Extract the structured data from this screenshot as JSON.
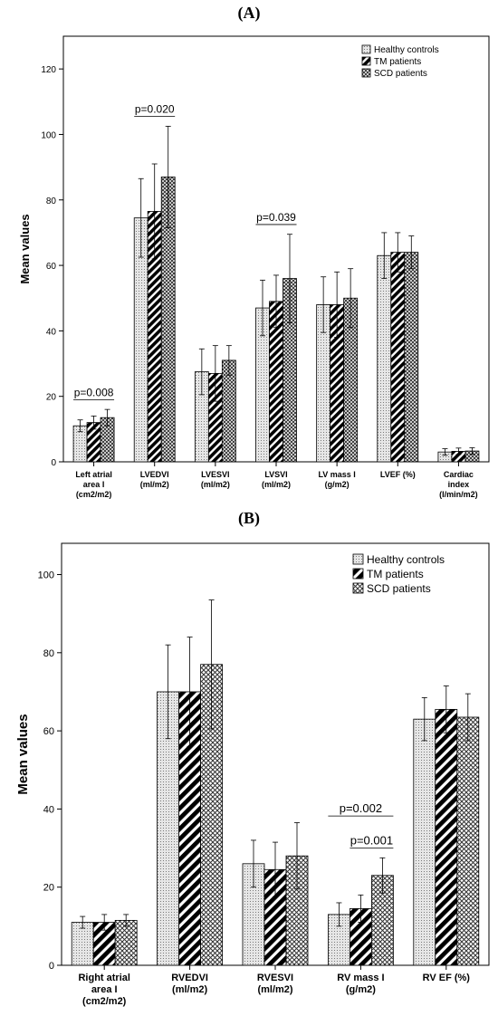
{
  "panels": {
    "a_label": "(A)",
    "b_label": "(B)"
  },
  "fills": {
    "healthy": "#d9d9d9",
    "tm": "#000000",
    "scd": "#7a7a7a"
  },
  "chart_data": [
    {
      "type": "bar",
      "panel": "(A)",
      "ylabel": "Mean values",
      "ylim": [
        0,
        130
      ],
      "yticks": [
        0,
        20,
        40,
        60,
        80,
        100,
        120
      ],
      "legend_position": "top-right",
      "categories": [
        [
          "Left atrial",
          "area I",
          "(cm2/m2)"
        ],
        [
          "LVEDVI",
          "(ml/m2)"
        ],
        [
          "LVESVI",
          "(ml/m2)"
        ],
        [
          "LVSVI",
          "(ml/m2)"
        ],
        [
          "LV mass I",
          "(g/m2)"
        ],
        [
          "LVEF (%)"
        ],
        [
          "Cardiac",
          "index",
          "(l/min/m2)"
        ]
      ],
      "series": [
        {
          "name": "Healthy controls",
          "values": [
            11,
            74.5,
            27.5,
            47,
            48,
            63,
            3
          ],
          "errors": [
            1.8,
            12,
            7,
            8.5,
            8.5,
            7,
            1
          ]
        },
        {
          "name": "TM patients",
          "values": [
            12,
            76.5,
            27,
            49,
            48,
            64,
            3.2
          ],
          "errors": [
            2,
            14.5,
            8.5,
            8,
            10,
            6,
            1
          ]
        },
        {
          "name": "SCD patients",
          "values": [
            13.5,
            87,
            31,
            56,
            50,
            64,
            3.3
          ],
          "errors": [
            2.5,
            15.5,
            4.5,
            13.5,
            9,
            5,
            1
          ]
        }
      ],
      "annotations": [
        {
          "text": "p=0.008",
          "from": 0,
          "to": 0
        },
        {
          "text": "p=0.020",
          "from": 1,
          "to": 1
        },
        {
          "text": "p=0.039",
          "from": 3,
          "to": 3
        }
      ]
    },
    {
      "type": "bar",
      "panel": "(B)",
      "ylabel": "Mean values",
      "ylim": [
        0,
        108
      ],
      "yticks": [
        0,
        20,
        40,
        60,
        80,
        100
      ],
      "legend_position": "top-right",
      "categories": [
        [
          "Right atrial",
          "area I",
          "(cm2/m2)"
        ],
        [
          "RVEDVI",
          "(ml/m2)"
        ],
        [
          "RVESVI",
          "(ml/m2)"
        ],
        [
          "RV mass I",
          "(g/m2)"
        ],
        [
          "RV EF (%)"
        ]
      ],
      "series": [
        {
          "name": "Healthy controls",
          "values": [
            11,
            70,
            26,
            13,
            63
          ],
          "errors": [
            1.5,
            12,
            6,
            3,
            5.5
          ]
        },
        {
          "name": "TM patients",
          "values": [
            11,
            70,
            24.5,
            14.5,
            65.5
          ],
          "errors": [
            2,
            14,
            7,
            3.5,
            6
          ]
        },
        {
          "name": "SCD patients",
          "values": [
            11.5,
            77,
            28,
            23,
            63.5
          ],
          "errors": [
            1.5,
            16.5,
            8.5,
            4.5,
            6
          ]
        }
      ],
      "annotations": [
        {
          "text": "p=0.002",
          "from": 3,
          "to": 3,
          "level": 0
        },
        {
          "text": "p=0.001",
          "from": 3,
          "to": 3,
          "level": 1
        }
      ]
    }
  ]
}
